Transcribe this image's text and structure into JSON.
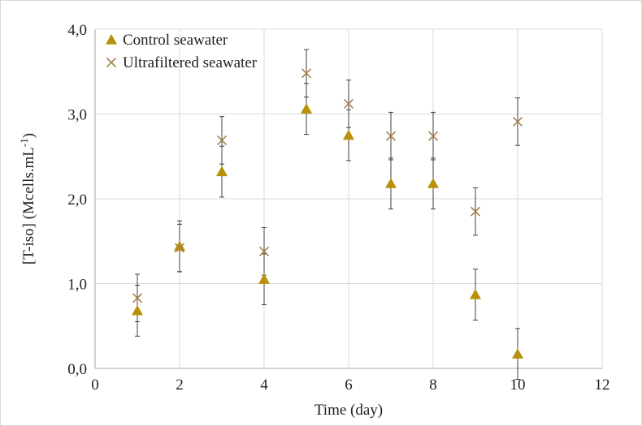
{
  "chart_data": {
    "type": "scatter",
    "xlabel": "Time (day)",
    "ylabel": "[T-iso] (Mcells.mL",
    "ylabel_sup": "-1",
    "ylabel_end": ")",
    "xlim": [
      0,
      12
    ],
    "ylim": [
      0,
      4
    ],
    "x_ticks": [
      0,
      2,
      4,
      6,
      8,
      10,
      12
    ],
    "x_tick_labels": [
      "0",
      "2",
      "4",
      "6",
      "8",
      "10",
      "12"
    ],
    "y_ticks": [
      0,
      1,
      2,
      3,
      4
    ],
    "y_tick_labels": [
      "0,0",
      "1,0",
      "2,0",
      "3,0",
      "4,0"
    ],
    "grid": true,
    "legend_position": "top-left",
    "series": [
      {
        "name": "Control seawater",
        "marker": "triangle",
        "color": "#b8900a",
        "x": [
          1,
          2,
          3,
          4,
          5,
          6,
          7,
          8,
          9,
          10
        ],
        "y": [
          0.68,
          1.44,
          2.32,
          1.05,
          3.06,
          2.75,
          2.18,
          2.18,
          0.87,
          0.17
        ],
        "error": [
          0.3,
          0.3,
          0.3,
          0.3,
          0.3,
          0.3,
          0.3,
          0.3,
          0.3,
          0.3
        ]
      },
      {
        "name": "Ultrafiltered seawater",
        "marker": "x",
        "color": "#a6854a",
        "x": [
          1,
          2,
          3,
          4,
          5,
          6,
          7,
          8,
          9,
          10
        ],
        "y": [
          0.83,
          1.42,
          2.69,
          1.38,
          3.48,
          3.12,
          2.74,
          2.74,
          1.85,
          2.91
        ],
        "error": [
          0.28,
          0.28,
          0.28,
          0.28,
          0.28,
          0.28,
          0.28,
          0.28,
          0.28,
          0.28
        ]
      }
    ]
  }
}
